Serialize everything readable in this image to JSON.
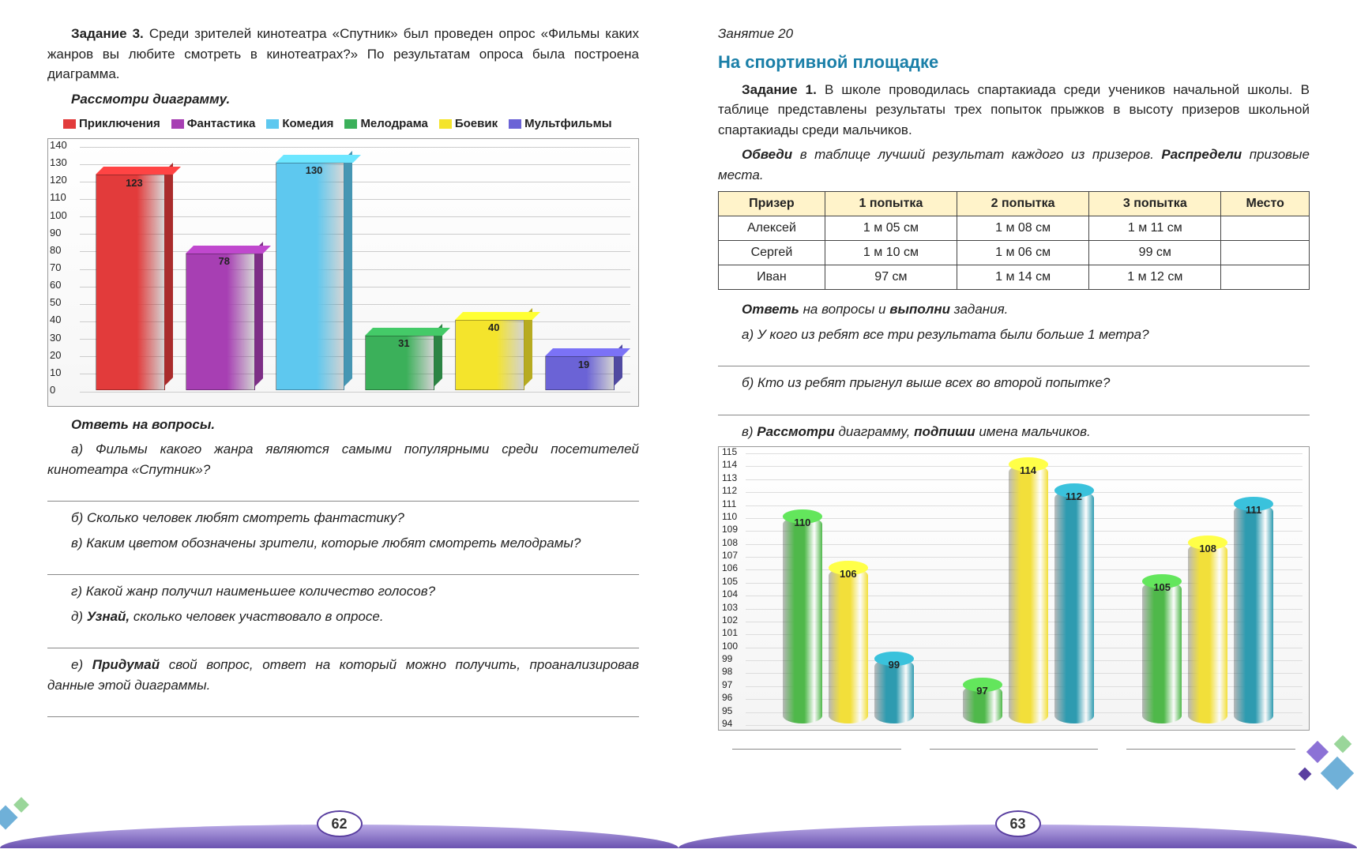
{
  "left": {
    "task_label": "Задание 3.",
    "task_text": "Среди зрителей кинотеатра «Спутник» был проведен опрос «Фильмы каких жанров вы любите смотреть в кинотеатрах?» По результатам опроса была построена диаграмма.",
    "instr": "Рассмотри диаграмму.",
    "chart": {
      "type": "bar-3d",
      "ymax": 140,
      "ystep": 10,
      "categories": [
        "Приключения",
        "Фантастика",
        "Комедия",
        "Мелодрама",
        "Боевик",
        "Мультфильмы"
      ],
      "values": [
        123,
        78,
        130,
        31,
        40,
        19
      ],
      "colors": [
        "#e23b3b",
        "#a73fb3",
        "#5ec8ef",
        "#3bb05a",
        "#f4e42c",
        "#6b63d6"
      ],
      "bg": "#ffffff",
      "grid_color": "#cccccc",
      "label_fontsize": 13
    },
    "q_head": "Ответь на вопросы.",
    "qa": "а) Фильмы какого жанра являются самыми популярными среди посетителей кинотеатра «Спутник»?",
    "qb": "б) Сколько человек любят смотреть фантастику?",
    "qc": "в) Каким цветом обозначены зрители, которые любят смотреть мелодрамы?",
    "qd": "г) Какой жанр получил наименьшее количество голосов?",
    "qe_pre": "д) ",
    "qe_b": "Узнай,",
    "qe_post": " сколько человек участвовало в опросе.",
    "qf_pre": "е) ",
    "qf_b": "Придумай",
    "qf_post": " свой вопрос, ответ на который можно получить, проанализировав данные этой диаграммы.",
    "pn": "62"
  },
  "right": {
    "lesson": "Занятие 20",
    "title": "На спортивной площадке",
    "task_label": "Задание 1.",
    "task_text": "В школе проводилась спартакиада среди учеников начальной школы. В таблице представлены результаты трех попыток прыжков в высоту призеров школьной спартакиады среди мальчиков.",
    "instr_pre": "Обведи",
    "instr_mid": " в таблице лучший результат каждого из призеров. ",
    "instr_b2": "Распредели",
    "instr_post": " призовые места.",
    "table": {
      "headers": [
        "Призер",
        "1 попытка",
        "2 попытка",
        "3 попытка",
        "Место"
      ],
      "rows": [
        [
          "Алексей",
          "1 м 05 см",
          "1 м 08 см",
          "1 м 11 см",
          ""
        ],
        [
          "Сергей",
          "1 м 10 см",
          "1 м 06 см",
          "99 см",
          ""
        ],
        [
          "Иван",
          "97 см",
          "1 м 14 см",
          "1 м 12 см",
          ""
        ]
      ],
      "header_bg": "#fff3ca"
    },
    "q_head_pre": "Ответь ",
    "q_head_mid": "на вопросы и ",
    "q_head_b2": "выполни",
    "q_head_post": " задания.",
    "qa": "а) У кого из ребят все три результата были больше 1 метра?",
    "qb": "б) Кто из ребят прыгнул выше всех во второй попытке?",
    "qc_pre": "в) ",
    "qc_b1": "Рассмотри",
    "qc_mid": " диаграмму, ",
    "qc_b2": "подпиши",
    "qc_post": " имена мальчиков.",
    "chart": {
      "type": "bar-cylinder",
      "ymin": 94,
      "ymax": 115,
      "ystep": 1,
      "groups": [
        {
          "values": [
            110,
            106,
            99
          ]
        },
        {
          "values": [
            97,
            114,
            112
          ]
        },
        {
          "values": [
            105,
            108,
            111
          ]
        }
      ],
      "colors": [
        "#4fb84a",
        "#f2df3a",
        "#2e9bb0"
      ],
      "grid_color": "#dddddd",
      "label_fontsize": 12
    },
    "pn": "63"
  }
}
